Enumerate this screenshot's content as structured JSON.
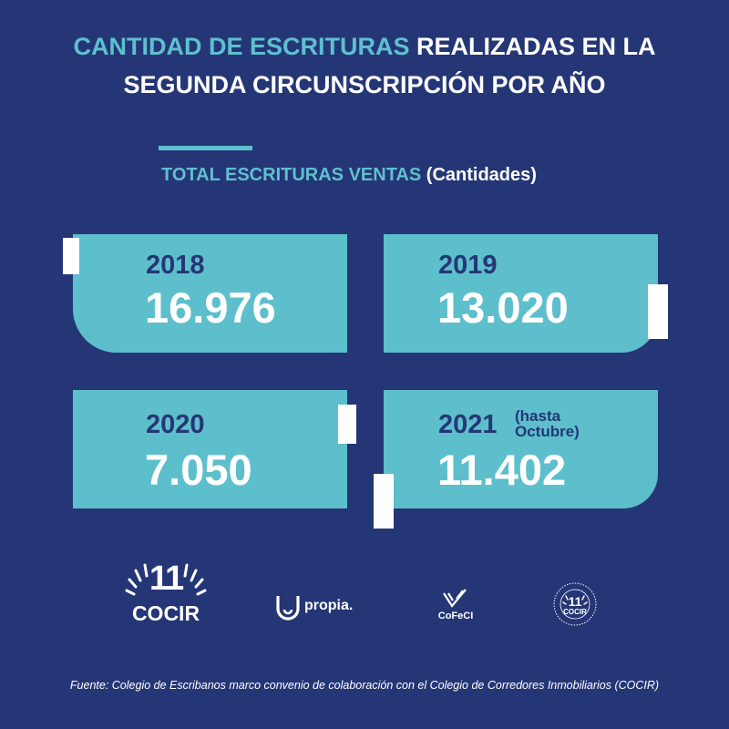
{
  "header": {
    "title_highlight": "CANTIDAD DE ESCRITURAS",
    "title_rest_line1": "REALIZADAS EN LA",
    "title_line2": "SEGUNDA CIRCUNSCRIPCIÓN POR AÑO"
  },
  "subtitle": {
    "main": "TOTAL ESCRITURAS VENTAS",
    "paren": "(Cantidades)"
  },
  "stats": [
    {
      "year": "2018",
      "value": "16.976"
    },
    {
      "year": "2019",
      "value": "13.020"
    },
    {
      "year": "2020",
      "value": "7.050"
    },
    {
      "year": "2021",
      "value": "11.402",
      "note_line1": "(hasta",
      "note_line2": "Octubre)"
    }
  ],
  "logos": {
    "cocir_number": "11",
    "cocir": "COCIR",
    "propia": "propia.",
    "cofeci": "CoFeCI",
    "instituto_ring": "INSTITUTO DE MEDIACIÓN PROFESIONAL",
    "instituto_number": "11",
    "instituto_name": "COCIR"
  },
  "footer": {
    "source": "Fuente: Colegio de Escribanos marco convenio de colaboración con el Colegio de Corredores Inmobiliarios (COCIR)"
  },
  "colors": {
    "background": "#253676",
    "accent": "#5ec0cf",
    "box": "#5dbfcb",
    "text_dark": "#253676",
    "text_light": "#ffffff"
  }
}
